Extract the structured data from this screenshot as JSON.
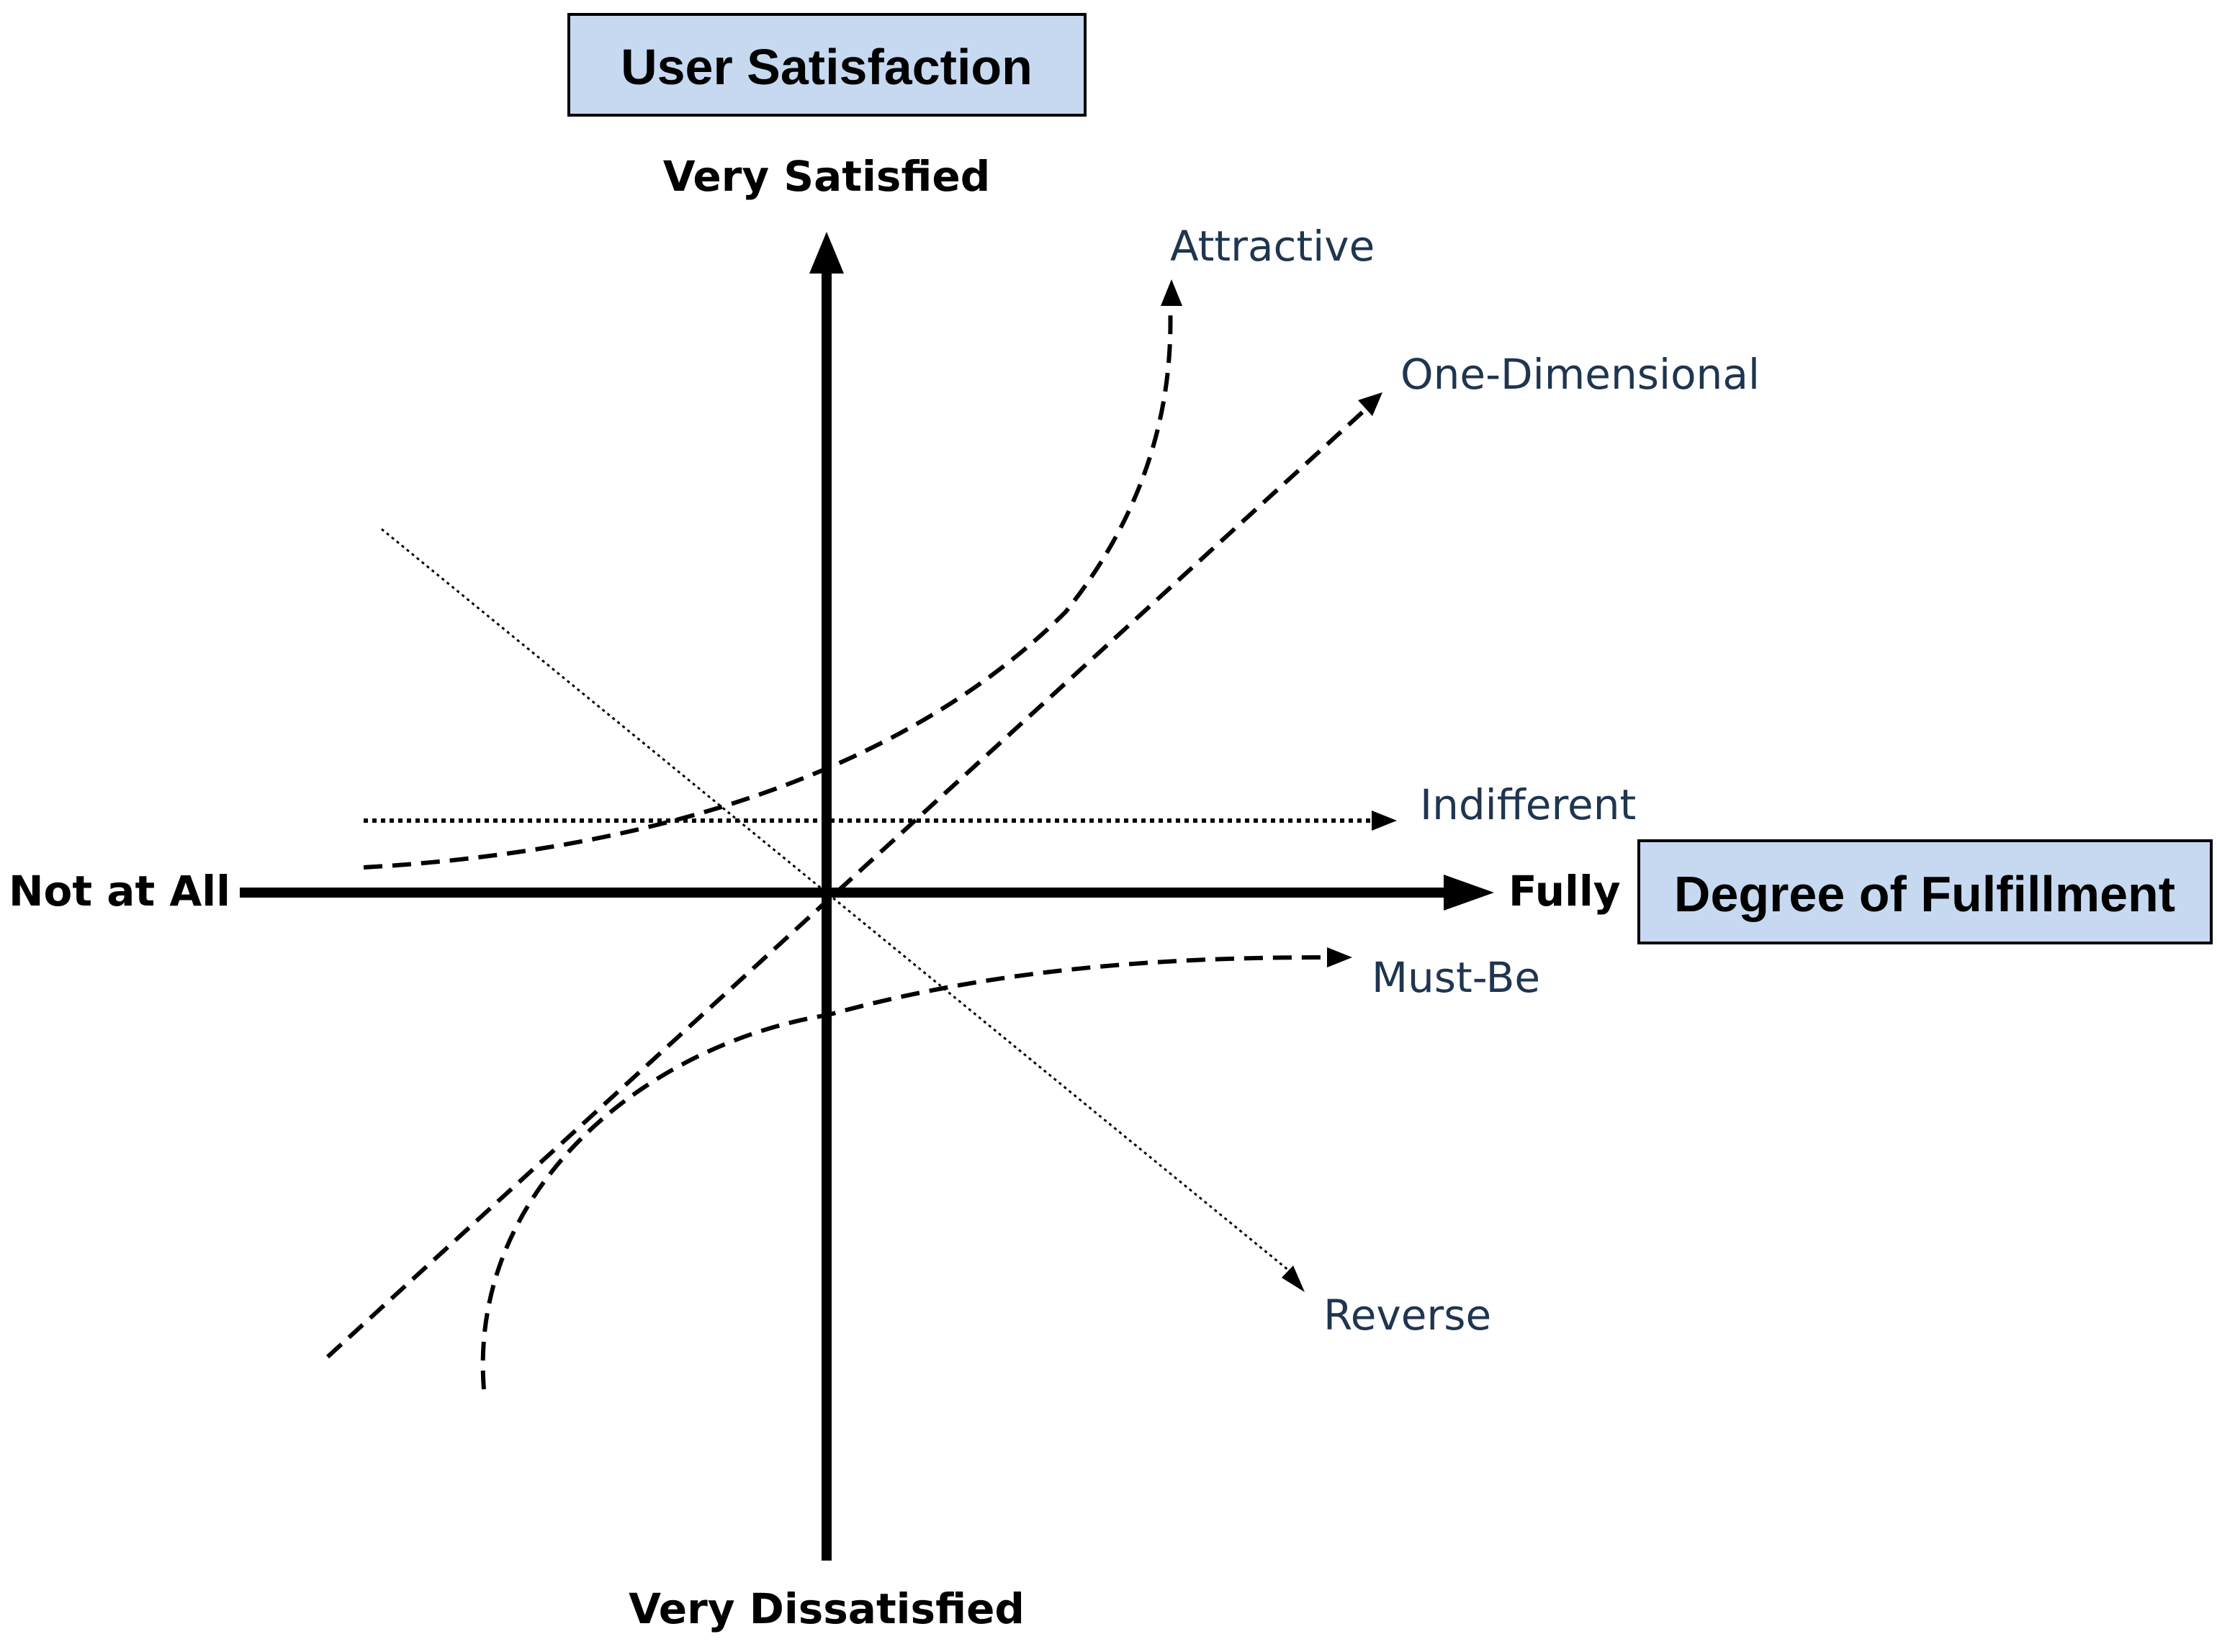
{
  "title_box": {
    "text": "User Satisfaction",
    "fill": "#c6d9f1",
    "stroke": "#000000"
  },
  "x_box": {
    "text": "Degree of Fulfillment",
    "fill": "#c6d9f1",
    "stroke": "#000000"
  },
  "axes": {
    "y_top": "Very Satisfied",
    "y_bottom": "Very Dissatisfied",
    "x_left": "Not at All",
    "x_right": "Fully"
  },
  "curves": [
    {
      "id": "attractive",
      "label": "Attractive",
      "style": "dashed"
    },
    {
      "id": "one-dimensional",
      "label": "One-Dimensional",
      "style": "dashed"
    },
    {
      "id": "indifferent",
      "label": "Indifferent",
      "style": "dotted"
    },
    {
      "id": "must-be",
      "label": "Must-Be",
      "style": "dashed"
    },
    {
      "id": "reverse",
      "label": "Reverse",
      "style": "fine-dotted"
    }
  ],
  "colors": {
    "line": "#000000",
    "label_text": "#1f3550"
  }
}
